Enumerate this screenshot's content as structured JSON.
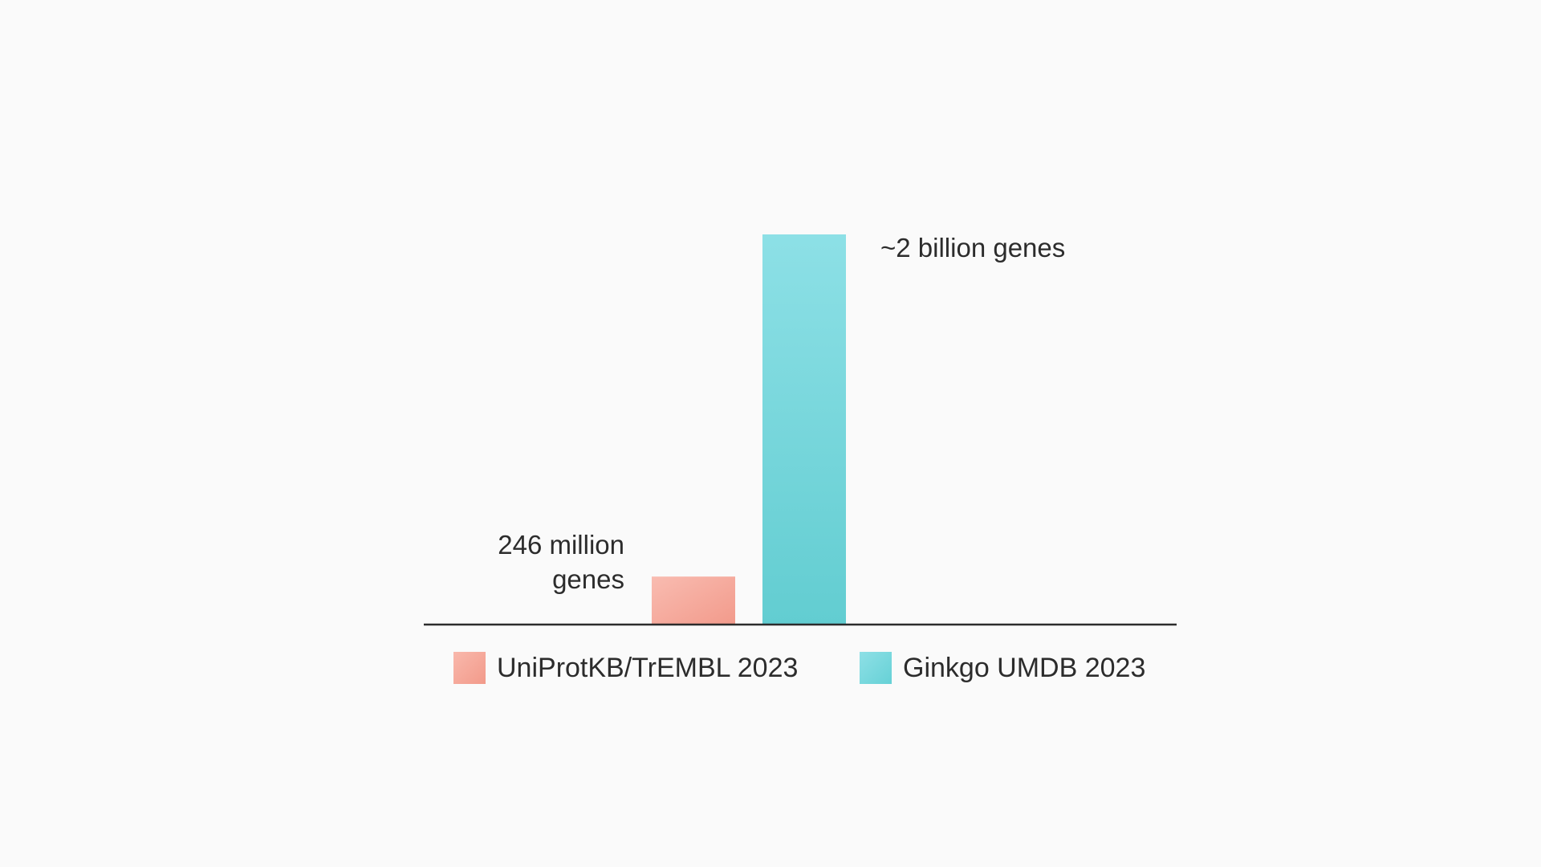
{
  "chart_data": {
    "type": "bar",
    "categories": [
      "UniProtKB/TrEMBL 2023",
      "Ginkgo UMDB 2023"
    ],
    "values": [
      246000000,
      2000000000
    ],
    "units": "genes",
    "ylim": [
      0,
      2000000000
    ],
    "grid": false,
    "legend_position": "bottom",
    "bar_labels": [
      "246 million genes",
      "~2 billion genes"
    ],
    "colors": [
      "#f4a497",
      "#7ad8de"
    ]
  },
  "legend": {
    "items": [
      {
        "label": "UniProtKB/TrEMBL 2023",
        "color": "#f4a497"
      },
      {
        "label": "Ginkgo UMDB 2023",
        "color": "#7ad8de"
      }
    ]
  }
}
